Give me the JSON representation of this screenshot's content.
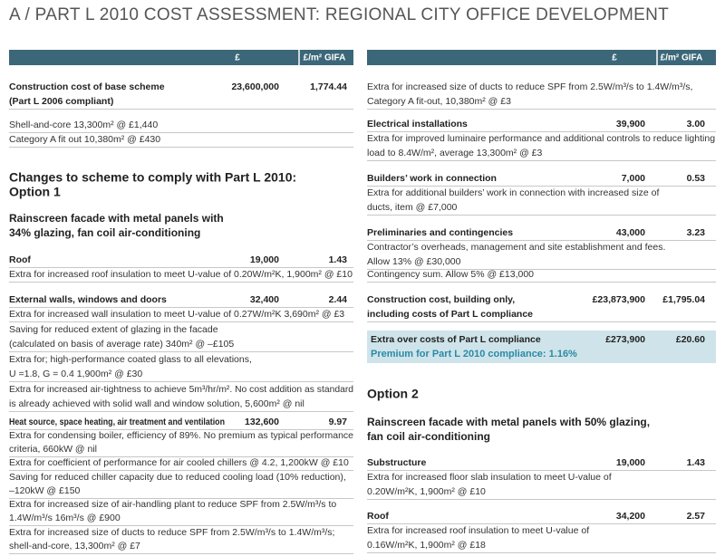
{
  "title": "A / PART L 2010 COST ASSESSMENT: REGIONAL CITY OFFICE DEVELOPMENT",
  "columns": [
    {
      "header": [
        "£",
        "£/m² GIFA"
      ],
      "items": [
        {
          "kind": "cost",
          "label": [
            "Construction cost of base scheme",
            "(Part L 2006 compliant)"
          ],
          "gbp": "23,600,000",
          "gifa": "1,774.44"
        },
        {
          "kind": "note",
          "lines": [
            "Shell-and-core 13,300m² @ £1,440"
          ]
        },
        {
          "kind": "note",
          "lines": [
            "Category A fit out 10,380m² @ £430"
          ]
        },
        {
          "kind": "heading",
          "lines": [
            "Changes to scheme to comply with Part L 2010:",
            "Option 1"
          ]
        },
        {
          "kind": "subheading",
          "lines": [
            "Rainscreen facade with metal panels with",
            "34% glazing, fan coil air-conditioning"
          ]
        },
        {
          "kind": "cost",
          "label": [
            "Roof"
          ],
          "gbp": "19,000",
          "gifa": "1.43"
        },
        {
          "kind": "note",
          "lines": [
            "Extra for increased roof insulation to meet U-value of 0.20W/m²K, 1,900m² @ £10"
          ]
        },
        {
          "kind": "cost",
          "label": [
            "External walls, windows and doors"
          ],
          "gbp": "32,400",
          "gifa": "2.44"
        },
        {
          "kind": "note",
          "lines": [
            "Extra for increased wall insulation to meet U-value of 0.27W/m²K 3,690m² @ £3"
          ]
        },
        {
          "kind": "note",
          "lines": [
            "Saving for reduced extent of glazing in the facade",
            "(calculated on basis of average rate) 340m² @ –£105"
          ]
        },
        {
          "kind": "note",
          "lines": [
            "Extra for; high-performance coated glass to all elevations,",
            "U =1.8, G = 0.4 1,900m² @ £30"
          ]
        },
        {
          "kind": "note",
          "lines": [
            "Extra for increased air-tightness to achieve 5m³/hr/m². No cost addition as standard",
            "is already achieved with solid wall and window solution, 5,600m² @ nil"
          ]
        },
        {
          "kind": "cost",
          "label": [
            "Heat source, space heating, air treatment and ventilation"
          ],
          "gbp": "132,600",
          "gifa": "9.97"
        },
        {
          "kind": "note",
          "lines": [
            "Extra for condensing boiler, efficiency of 89%. No premium as typical performance",
            "criteria, 660kW @ nil"
          ]
        },
        {
          "kind": "note",
          "lines": [
            "Extra for coefficient of performance for air cooled chillers @ 4.2, 1,200kW @ £10"
          ]
        },
        {
          "kind": "note",
          "lines": [
            "Saving for reduced chiller capacity due to reduced cooling load (10% reduction),",
            "–120kW @ £150"
          ]
        },
        {
          "kind": "note",
          "lines": [
            "Extra for increased size of air-handling plant to reduce SPF from 2.5W/m³/s to",
            "1.4W/m³/s 16m³/s @ £900"
          ]
        },
        {
          "kind": "note",
          "lines": [
            "Extra for increased size of ducts to reduce SPF from 2.5W/m³/s to 1.4W/m³/s;",
            "shell-and-core, 13,300m² @ £7"
          ]
        }
      ]
    },
    {
      "header": [
        "£",
        "£/m² GIFA"
      ],
      "items": [
        {
          "kind": "note",
          "lines": [
            "Extra for increased size of ducts to reduce SPF from 2.5W/m³/s to 1.4W/m³/s,",
            "Category A fit-out, 10,380m² @ £3"
          ]
        },
        {
          "kind": "cost",
          "label": [
            "Electrical installations"
          ],
          "gbp": "39,900",
          "gifa": "3.00"
        },
        {
          "kind": "note",
          "lines": [
            "Extra for improved luminaire performance and additional controls to reduce lighting",
            "load to 8.4W/m², average 13,300m² @ £3"
          ]
        },
        {
          "kind": "cost",
          "label": [
            "Builders’ work in connection"
          ],
          "gbp": "7,000",
          "gifa": "0.53"
        },
        {
          "kind": "note",
          "lines": [
            "Extra for additional builders’ work in connection with increased size of",
            "ducts, item @ £7,000"
          ]
        },
        {
          "kind": "cost",
          "label": [
            "Preliminaries and contingencies"
          ],
          "gbp": "43,000",
          "gifa": "3.23"
        },
        {
          "kind": "note",
          "lines": [
            "Contractor’s overheads, management and site establishment and fees.",
            "Allow 13% @ £30,000"
          ]
        },
        {
          "kind": "note",
          "lines": [
            "Contingency sum. Allow 5% @ £13,000"
          ]
        },
        {
          "kind": "cost",
          "label": [
            "Construction cost, building only,",
            "including costs of Part L compliance"
          ],
          "gbp": "£23,873,900",
          "gifa": "£1,795.04"
        },
        {
          "kind": "highlight",
          "label": "Extra over costs of Part L compliance",
          "gbp": "£273,900",
          "gifa": "£20.60",
          "premium": "Premium for Part L 2010 compliance: 1.16%"
        },
        {
          "kind": "heading",
          "lines": [
            "Option 2"
          ]
        },
        {
          "kind": "subheading",
          "lines": [
            "Rainscreen facade with metal panels with 50% glazing,",
            "fan coil air-conditioning"
          ]
        },
        {
          "kind": "cost",
          "label": [
            "Substructure"
          ],
          "gbp": "19,000",
          "gifa": "1.43"
        },
        {
          "kind": "note",
          "lines": [
            "Extra for increased floor slab insulation to meet U-value of",
            "0.20W/m²K, 1,900m² @ £10"
          ]
        },
        {
          "kind": "cost",
          "label": [
            "Roof"
          ],
          "gbp": "34,200",
          "gifa": "2.57"
        },
        {
          "kind": "note",
          "lines": [
            "Extra for increased roof insulation to meet U-value of",
            "0.16W/m²K, 1,900m² @ £18"
          ]
        }
      ]
    }
  ]
}
